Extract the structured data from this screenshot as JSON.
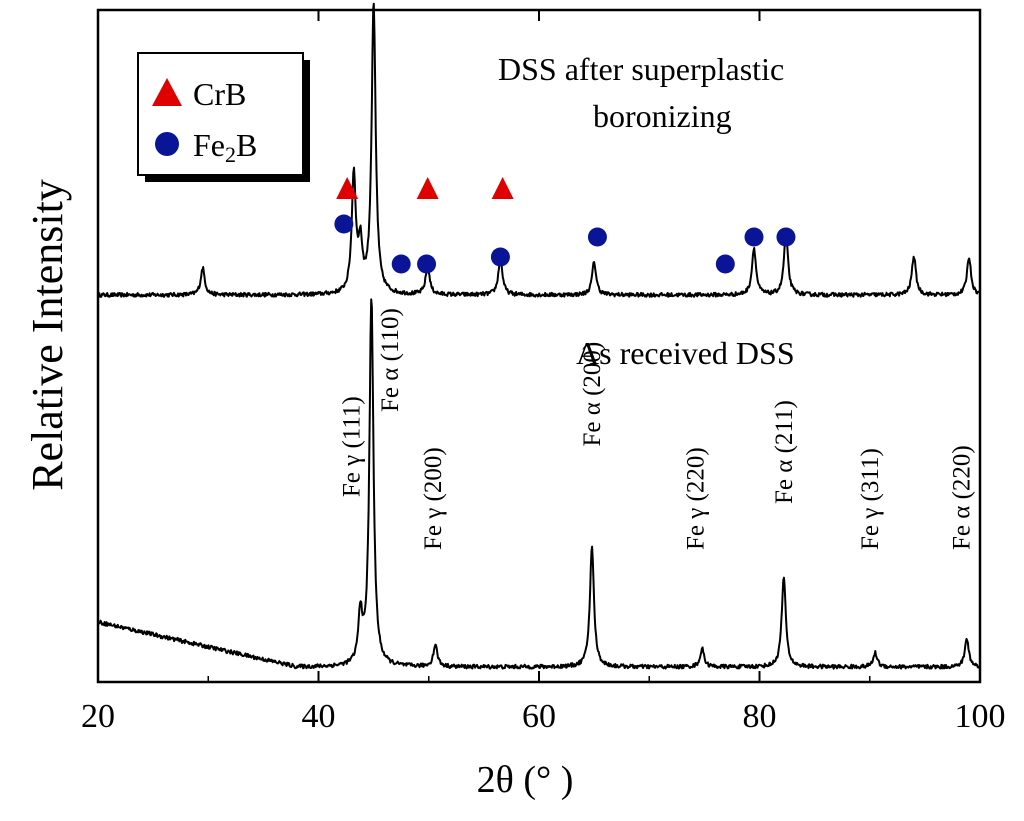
{
  "chart_data": {
    "type": "line",
    "xlabel": "2θ (° )",
    "ylabel": "Relative Intensity",
    "xlim": [
      20,
      100
    ],
    "xticks": [
      20,
      40,
      60,
      80,
      100
    ],
    "grid": false,
    "series": [
      {
        "name": "DSS after superplastic boronizing",
        "baseline_intensity": 0.2,
        "noise_intensity": 0.02,
        "peaks": [
          {
            "x": 29.5,
            "intensity": 0.27
          },
          {
            "x": 43.2,
            "intensity": 1.18
          },
          {
            "x": 43.8,
            "intensity": 0.45
          },
          {
            "x": 45.0,
            "intensity": 2.9
          },
          {
            "x": 49.9,
            "intensity": 0.28
          },
          {
            "x": 56.5,
            "intensity": 0.37
          },
          {
            "x": 65.0,
            "intensity": 0.33
          },
          {
            "x": 79.5,
            "intensity": 0.47
          },
          {
            "x": 82.4,
            "intensity": 0.62
          },
          {
            "x": 94.0,
            "intensity": 0.39
          },
          {
            "x": 99.0,
            "intensity": 0.38
          }
        ]
      },
      {
        "name": "As received DSS",
        "baseline_intensity": 0.0,
        "noise_intensity": 0.02,
        "background": [
          {
            "x": 20,
            "intensity": 0.5
          },
          {
            "x": 38,
            "intensity": 0.05
          }
        ],
        "peaks": [
          {
            "x": 43.8,
            "intensity": 0.5
          },
          {
            "x": 44.8,
            "intensity": 3.7
          },
          {
            "x": 50.6,
            "intensity": 0.22
          },
          {
            "x": 64.8,
            "intensity": 1.2
          },
          {
            "x": 74.8,
            "intensity": 0.18
          },
          {
            "x": 82.2,
            "intensity": 0.9
          },
          {
            "x": 90.5,
            "intensity": 0.14
          },
          {
            "x": 98.8,
            "intensity": 0.28
          }
        ]
      }
    ],
    "annotations": {
      "top_title_line1": "DSS after superplastic",
      "top_title_line2": "boronizing",
      "bottom_title": "As received DSS"
    },
    "legend": {
      "placement": "top-left",
      "items": [
        {
          "label": "CrB",
          "marker": "triangle",
          "color": "#e00000"
        },
        {
          "label": "Fe",
          "subscript": "2",
          "suffix": "B",
          "marker": "circle",
          "color": "#0a1496"
        }
      ]
    },
    "crb_markers": [
      {
        "x": 42.6,
        "level": "upper"
      },
      {
        "x": 49.9,
        "level": "upper"
      },
      {
        "x": 56.7,
        "level": "upper"
      }
    ],
    "fe2b_markers": [
      {
        "x": 42.3,
        "level": "upper"
      },
      {
        "x": 47.5,
        "level": "lower"
      },
      {
        "x": 49.8,
        "level": "lower"
      },
      {
        "x": 56.5,
        "level": "mid"
      },
      {
        "x": 65.3,
        "level": "upper"
      },
      {
        "x": 76.9,
        "level": "lower"
      },
      {
        "x": 79.5,
        "level": "upper"
      },
      {
        "x": 82.4,
        "level": "upper"
      }
    ],
    "peak_labels": [
      {
        "x": 43.0,
        "text": "Fe γ (111)",
        "level": 0.63
      },
      {
        "x": 46.5,
        "text": "Fe α (110)",
        "level": 1.0
      },
      {
        "x": 50.4,
        "text": "Fe γ (200)",
        "level": 0.4
      },
      {
        "x": 64.8,
        "text": "Fe α (200)",
        "level": 0.85
      },
      {
        "x": 74.2,
        "text": "Fe γ (220)",
        "level": 0.4
      },
      {
        "x": 82.2,
        "text": "Fe α (211)",
        "level": 0.6
      },
      {
        "x": 90.0,
        "text": "Fe γ (311)",
        "level": 0.4
      },
      {
        "x": 98.3,
        "text": "Fe α (220)",
        "level": 0.4
      }
    ]
  }
}
